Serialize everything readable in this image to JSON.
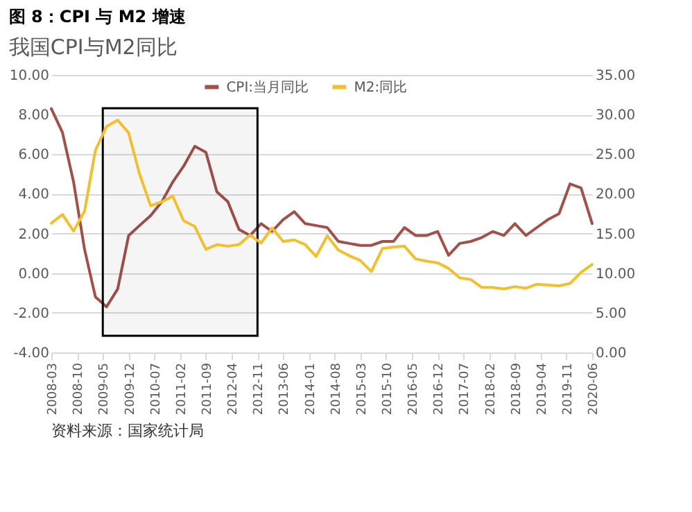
{
  "chart_data": {
    "type": "line",
    "title": "图 8：CPI 与 M2 增速",
    "subtitle": "我国CPI与M2同比",
    "x": [
      "2008-03",
      "2008-06",
      "2008-09",
      "2008-12",
      "2009-03",
      "2009-06",
      "2009-09",
      "2009-12",
      "2010-03",
      "2010-06",
      "2010-09",
      "2010-12",
      "2011-03",
      "2011-06",
      "2011-09",
      "2011-12",
      "2012-03",
      "2012-06",
      "2012-09",
      "2012-12",
      "2013-03",
      "2013-06",
      "2013-09",
      "2013-12",
      "2014-03",
      "2014-06",
      "2014-09",
      "2014-12",
      "2015-03",
      "2015-06",
      "2015-09",
      "2015-12",
      "2016-03",
      "2016-06",
      "2016-09",
      "2016-12",
      "2017-03",
      "2017-06",
      "2017-09",
      "2017-12",
      "2018-03",
      "2018-06",
      "2018-09",
      "2018-12",
      "2019-03",
      "2019-06",
      "2019-09",
      "2019-12",
      "2020-03",
      "2020-06"
    ],
    "series": [
      {
        "name": "CPI:当月同比",
        "color": "#a0524a",
        "values": [
          8.3,
          7.1,
          4.6,
          1.2,
          -1.2,
          -1.7,
          -0.8,
          1.9,
          2.4,
          2.9,
          3.6,
          4.6,
          5.4,
          6.4,
          6.1,
          4.1,
          3.6,
          2.2,
          1.9,
          2.5,
          2.1,
          2.7,
          3.1,
          2.5,
          2.4,
          2.3,
          1.6,
          1.5,
          1.4,
          1.4,
          1.6,
          1.6,
          2.3,
          1.9,
          1.9,
          2.1,
          0.9,
          1.5,
          1.6,
          1.8,
          2.1,
          1.9,
          2.5,
          1.9,
          2.3,
          2.7,
          3.0,
          4.5,
          4.3,
          2.5
        ]
      },
      {
        "name": "M2:同比",
        "color": "#f0c030",
        "axis": "y2",
        "values": [
          16.3,
          17.4,
          15.3,
          17.8,
          25.5,
          28.5,
          29.3,
          27.7,
          22.5,
          18.5,
          19.0,
          19.7,
          16.6,
          15.9,
          13.0,
          13.6,
          13.4,
          13.6,
          14.8,
          13.8,
          15.7,
          14.0,
          14.2,
          13.6,
          12.1,
          14.7,
          12.9,
          12.2,
          11.6,
          10.2,
          13.1,
          13.3,
          13.4,
          11.8,
          11.5,
          11.3,
          10.6,
          9.4,
          9.2,
          8.2,
          8.2,
          8.0,
          8.3,
          8.1,
          8.6,
          8.5,
          8.4,
          8.7,
          10.1,
          11.1
        ]
      }
    ],
    "xlim": [
      "2008-03",
      "2020-06"
    ],
    "xticks": [
      "2008-03",
      "2008-10",
      "2009-05",
      "2009-12",
      "2010-07",
      "2011-02",
      "2011-09",
      "2012-04",
      "2012-11",
      "2013-06",
      "2014-01",
      "2014-08",
      "2015-03",
      "2015-10",
      "2016-05",
      "2016-12",
      "2017-07",
      "2018-02",
      "2018-09",
      "2019-04",
      "2019-11",
      "2020-06"
    ],
    "ylim": [
      -4,
      10
    ],
    "yticks": [
      {
        "value": -4,
        "label": "-4.00"
      },
      {
        "value": -2,
        "label": "-2.00"
      },
      {
        "value": 0,
        "label": "0.00"
      },
      {
        "value": 2,
        "label": "2.00"
      },
      {
        "value": 4,
        "label": "4.00"
      },
      {
        "value": 6,
        "label": "6.00"
      },
      {
        "value": 8,
        "label": "8.00"
      },
      {
        "value": 10,
        "label": "10.00"
      }
    ],
    "y2lim": [
      0,
      35
    ],
    "y2ticks": [
      {
        "value": 0,
        "label": "0.00"
      },
      {
        "value": 5,
        "label": "5.00"
      },
      {
        "value": 10,
        "label": "10.00"
      },
      {
        "value": 15,
        "label": "15.00"
      },
      {
        "value": 20,
        "label": "20.00"
      },
      {
        "value": 25,
        "label": "25.00"
      },
      {
        "value": 30,
        "label": "30.00"
      },
      {
        "value": 35,
        "label": "35.00"
      }
    ],
    "bands": [
      {
        "axis": "x",
        "from": "2009-05",
        "to": "2012-11",
        "color": "#000000"
      }
    ],
    "annotations": [
      "资料来源：国家统计局"
    ],
    "grid": "y",
    "legend": "top",
    "marker": "none",
    "line_style": "solid"
  }
}
